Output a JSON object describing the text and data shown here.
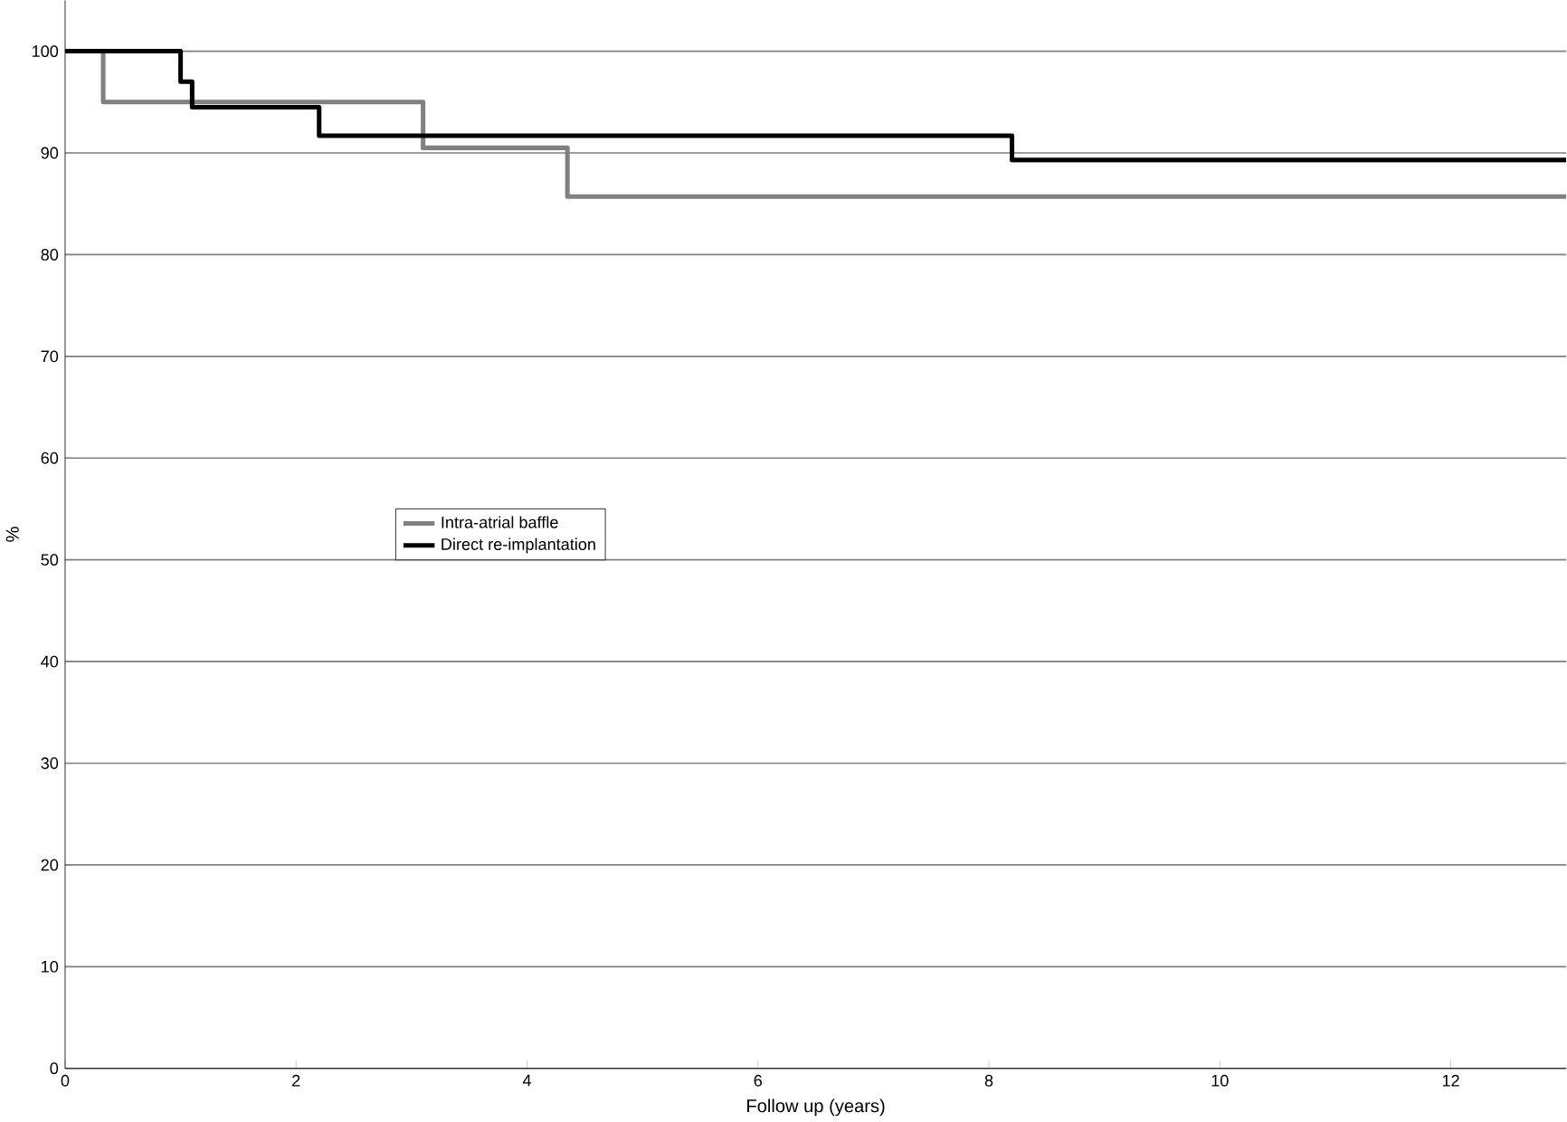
{
  "chart_data": {
    "type": "step",
    "xlabel": "Follow up (years)",
    "ylabel": "%",
    "xlim": [
      0,
      13
    ],
    "ylim": [
      0,
      105
    ],
    "xticks": [
      0,
      2,
      4,
      6,
      8,
      10,
      12
    ],
    "yticks": [
      0,
      10,
      20,
      30,
      40,
      50,
      60,
      70,
      80,
      90,
      100
    ],
    "grid": "y",
    "legend": "left",
    "series": [
      {
        "name": "Intra-atrial baffle",
        "color": "#808080",
        "x": [
          0,
          0.33,
          3.1,
          4.35,
          13
        ],
        "values": [
          100,
          95,
          90.5,
          85.7,
          85.7
        ]
      },
      {
        "name": "Direct re-implantation",
        "color": "#000000",
        "x": [
          0,
          1.0,
          1.1,
          2.2,
          8.2,
          13
        ],
        "values": [
          100,
          97,
          94.5,
          91.7,
          89.3,
          89.3
        ]
      }
    ]
  }
}
